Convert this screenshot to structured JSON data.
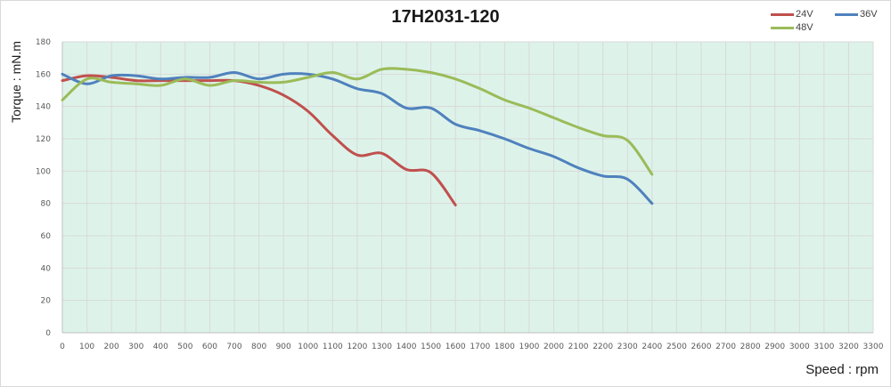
{
  "chart_data": {
    "type": "line",
    "title": "17H2031-120",
    "xlabel": "Speed : rpm",
    "ylabel": "Torque : mN.m",
    "xlim": [
      0,
      3300
    ],
    "ylim": [
      0,
      180
    ],
    "xticks": [
      0,
      100,
      200,
      300,
      400,
      500,
      600,
      700,
      800,
      900,
      1000,
      1100,
      1200,
      1300,
      1400,
      1500,
      1600,
      1700,
      1800,
      1900,
      2000,
      2100,
      2200,
      2300,
      2400,
      2500,
      2600,
      2700,
      2800,
      2900,
      3000,
      3100,
      3200,
      3300
    ],
    "yticks": [
      0,
      20,
      40,
      60,
      80,
      100,
      120,
      140,
      160,
      180
    ],
    "grid": true,
    "legend_position": "top-right",
    "plot_background": "#ddf3ea",
    "grid_color": "#d9d9d9",
    "series": [
      {
        "name": "24V",
        "color": "#c0504d",
        "x": [
          0,
          100,
          200,
          300,
          400,
          500,
          600,
          700,
          800,
          900,
          1000,
          1100,
          1200,
          1300,
          1400,
          1500,
          1600
        ],
        "values": [
          156,
          159,
          158,
          156,
          156,
          156,
          156,
          156,
          153,
          147,
          137,
          122,
          110,
          111,
          101,
          99,
          79
        ]
      },
      {
        "name": "36V",
        "color": "#4f81bd",
        "x": [
          0,
          100,
          200,
          300,
          400,
          500,
          600,
          700,
          800,
          900,
          1000,
          1100,
          1200,
          1300,
          1400,
          1500,
          1600,
          1700,
          1800,
          1900,
          2000,
          2100,
          2200,
          2300,
          2400
        ],
        "values": [
          160,
          154,
          159,
          159,
          157,
          158,
          158,
          161,
          157,
          160,
          160,
          157,
          151,
          148,
          139,
          139,
          129,
          125,
          120,
          114,
          109,
          102,
          97,
          95,
          80
        ]
      },
      {
        "name": "48V",
        "color": "#9bbb59",
        "x": [
          0,
          100,
          200,
          300,
          400,
          500,
          600,
          700,
          800,
          900,
          1000,
          1100,
          1200,
          1300,
          1400,
          1500,
          1600,
          1700,
          1800,
          1900,
          2000,
          2100,
          2200,
          2300,
          2400
        ],
        "values": [
          144,
          157,
          155,
          154,
          153,
          157,
          153,
          156,
          155,
          155,
          158,
          161,
          157,
          163,
          163,
          161,
          157,
          151,
          144,
          139,
          133,
          127,
          122,
          119,
          98
        ]
      }
    ]
  }
}
